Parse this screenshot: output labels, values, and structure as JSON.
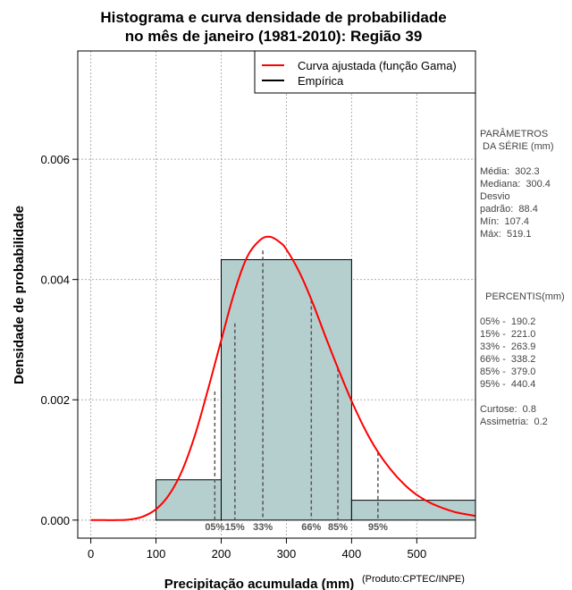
{
  "chart_data": {
    "type": "histogram",
    "title": [
      "Histograma e curva densidade de probabilidade",
      "no mês de janeiro (1981-2010): Região 39"
    ],
    "xlabel": "Precipitação acumulada (mm)",
    "ylabel": "Densidade de probabilidade",
    "xlim": [
      -20,
      590
    ],
    "ylim": [
      -0.0003,
      0.0078
    ],
    "xticks": [
      0,
      100,
      200,
      300,
      400,
      500
    ],
    "xtick_labels": [
      "0",
      "100",
      "200",
      "300",
      "400",
      "500"
    ],
    "yticks": [
      0.0,
      0.002,
      0.004,
      0.006
    ],
    "ytick_labels": [
      "0.000",
      "0.002",
      "0.004",
      "0.006"
    ],
    "grid": true,
    "bins": [
      {
        "x0": 100,
        "x1": 200,
        "density": 0.00067
      },
      {
        "x0": 200,
        "x1": 400,
        "density": 0.00433
      },
      {
        "x0": 400,
        "x1": 600,
        "density": 0.00033
      }
    ],
    "fitted_curve": {
      "name": "Curva ajustada (função Gama)",
      "color": "#ff0000",
      "x": [
        0,
        20,
        40,
        60,
        80,
        100,
        120,
        140,
        160,
        180,
        200,
        220,
        240,
        260,
        275,
        290,
        300,
        320,
        340,
        360,
        380,
        400,
        420,
        440,
        460,
        480,
        500,
        520,
        540,
        560,
        590
      ],
      "y": [
        0.0,
        0.0,
        0.0,
        1e-05,
        6e-05,
        0.00018,
        0.00042,
        0.00082,
        0.00142,
        0.00218,
        0.00299,
        0.00378,
        0.00438,
        0.00466,
        0.00471,
        0.00462,
        0.0045,
        0.00412,
        0.00362,
        0.00305,
        0.0025,
        0.00198,
        0.00152,
        0.00114,
        0.00084,
        0.0006,
        0.00042,
        0.00029,
        0.0002,
        0.00013,
        7e-05
      ]
    },
    "legend": {
      "position": "top-right",
      "entries": [
        {
          "label": "Curva ajustada (função Gama)",
          "color": "#ff0000"
        },
        {
          "label": "Empírica",
          "color": "#000000"
        }
      ]
    },
    "percentile_lines": [
      {
        "label": "05%",
        "x": 190.2,
        "y": 0.00214
      },
      {
        "label": "15%",
        "x": 221.0,
        "y": 0.00327
      },
      {
        "label": "33%",
        "x": 263.9,
        "y": 0.00448
      },
      {
        "label": "66%",
        "x": 338.2,
        "y": 0.00366
      },
      {
        "label": "85%",
        "x": 379.0,
        "y": 0.00253
      },
      {
        "label": "95%",
        "x": 440.4,
        "y": 0.00113
      }
    ],
    "credit": "(Produto:CPTEC/INPE)"
  },
  "side_panel": {
    "params_title": "PARÂMETROS\n DA SÉRIE (mm)",
    "params": "Média:  302.3\nMediana:  300.4\nDesvio\npadrão:  88.4\nMín:  107.4\nMáx:  519.1",
    "percentis_title": "  PERCENTIS(mm)",
    "percentis": "05% -  190.2\n15% -  221.0\n33% -  263.9\n66% -  338.2\n85% -  379.0\n95% -  440.4",
    "stats": "Curtose:  0.8\nAssimetria:  0.2"
  },
  "colors": {
    "bar_fill": "#b5cece",
    "curve": "#ff0000",
    "grid": "#b0b0b0",
    "percentile_line": "#555555"
  }
}
